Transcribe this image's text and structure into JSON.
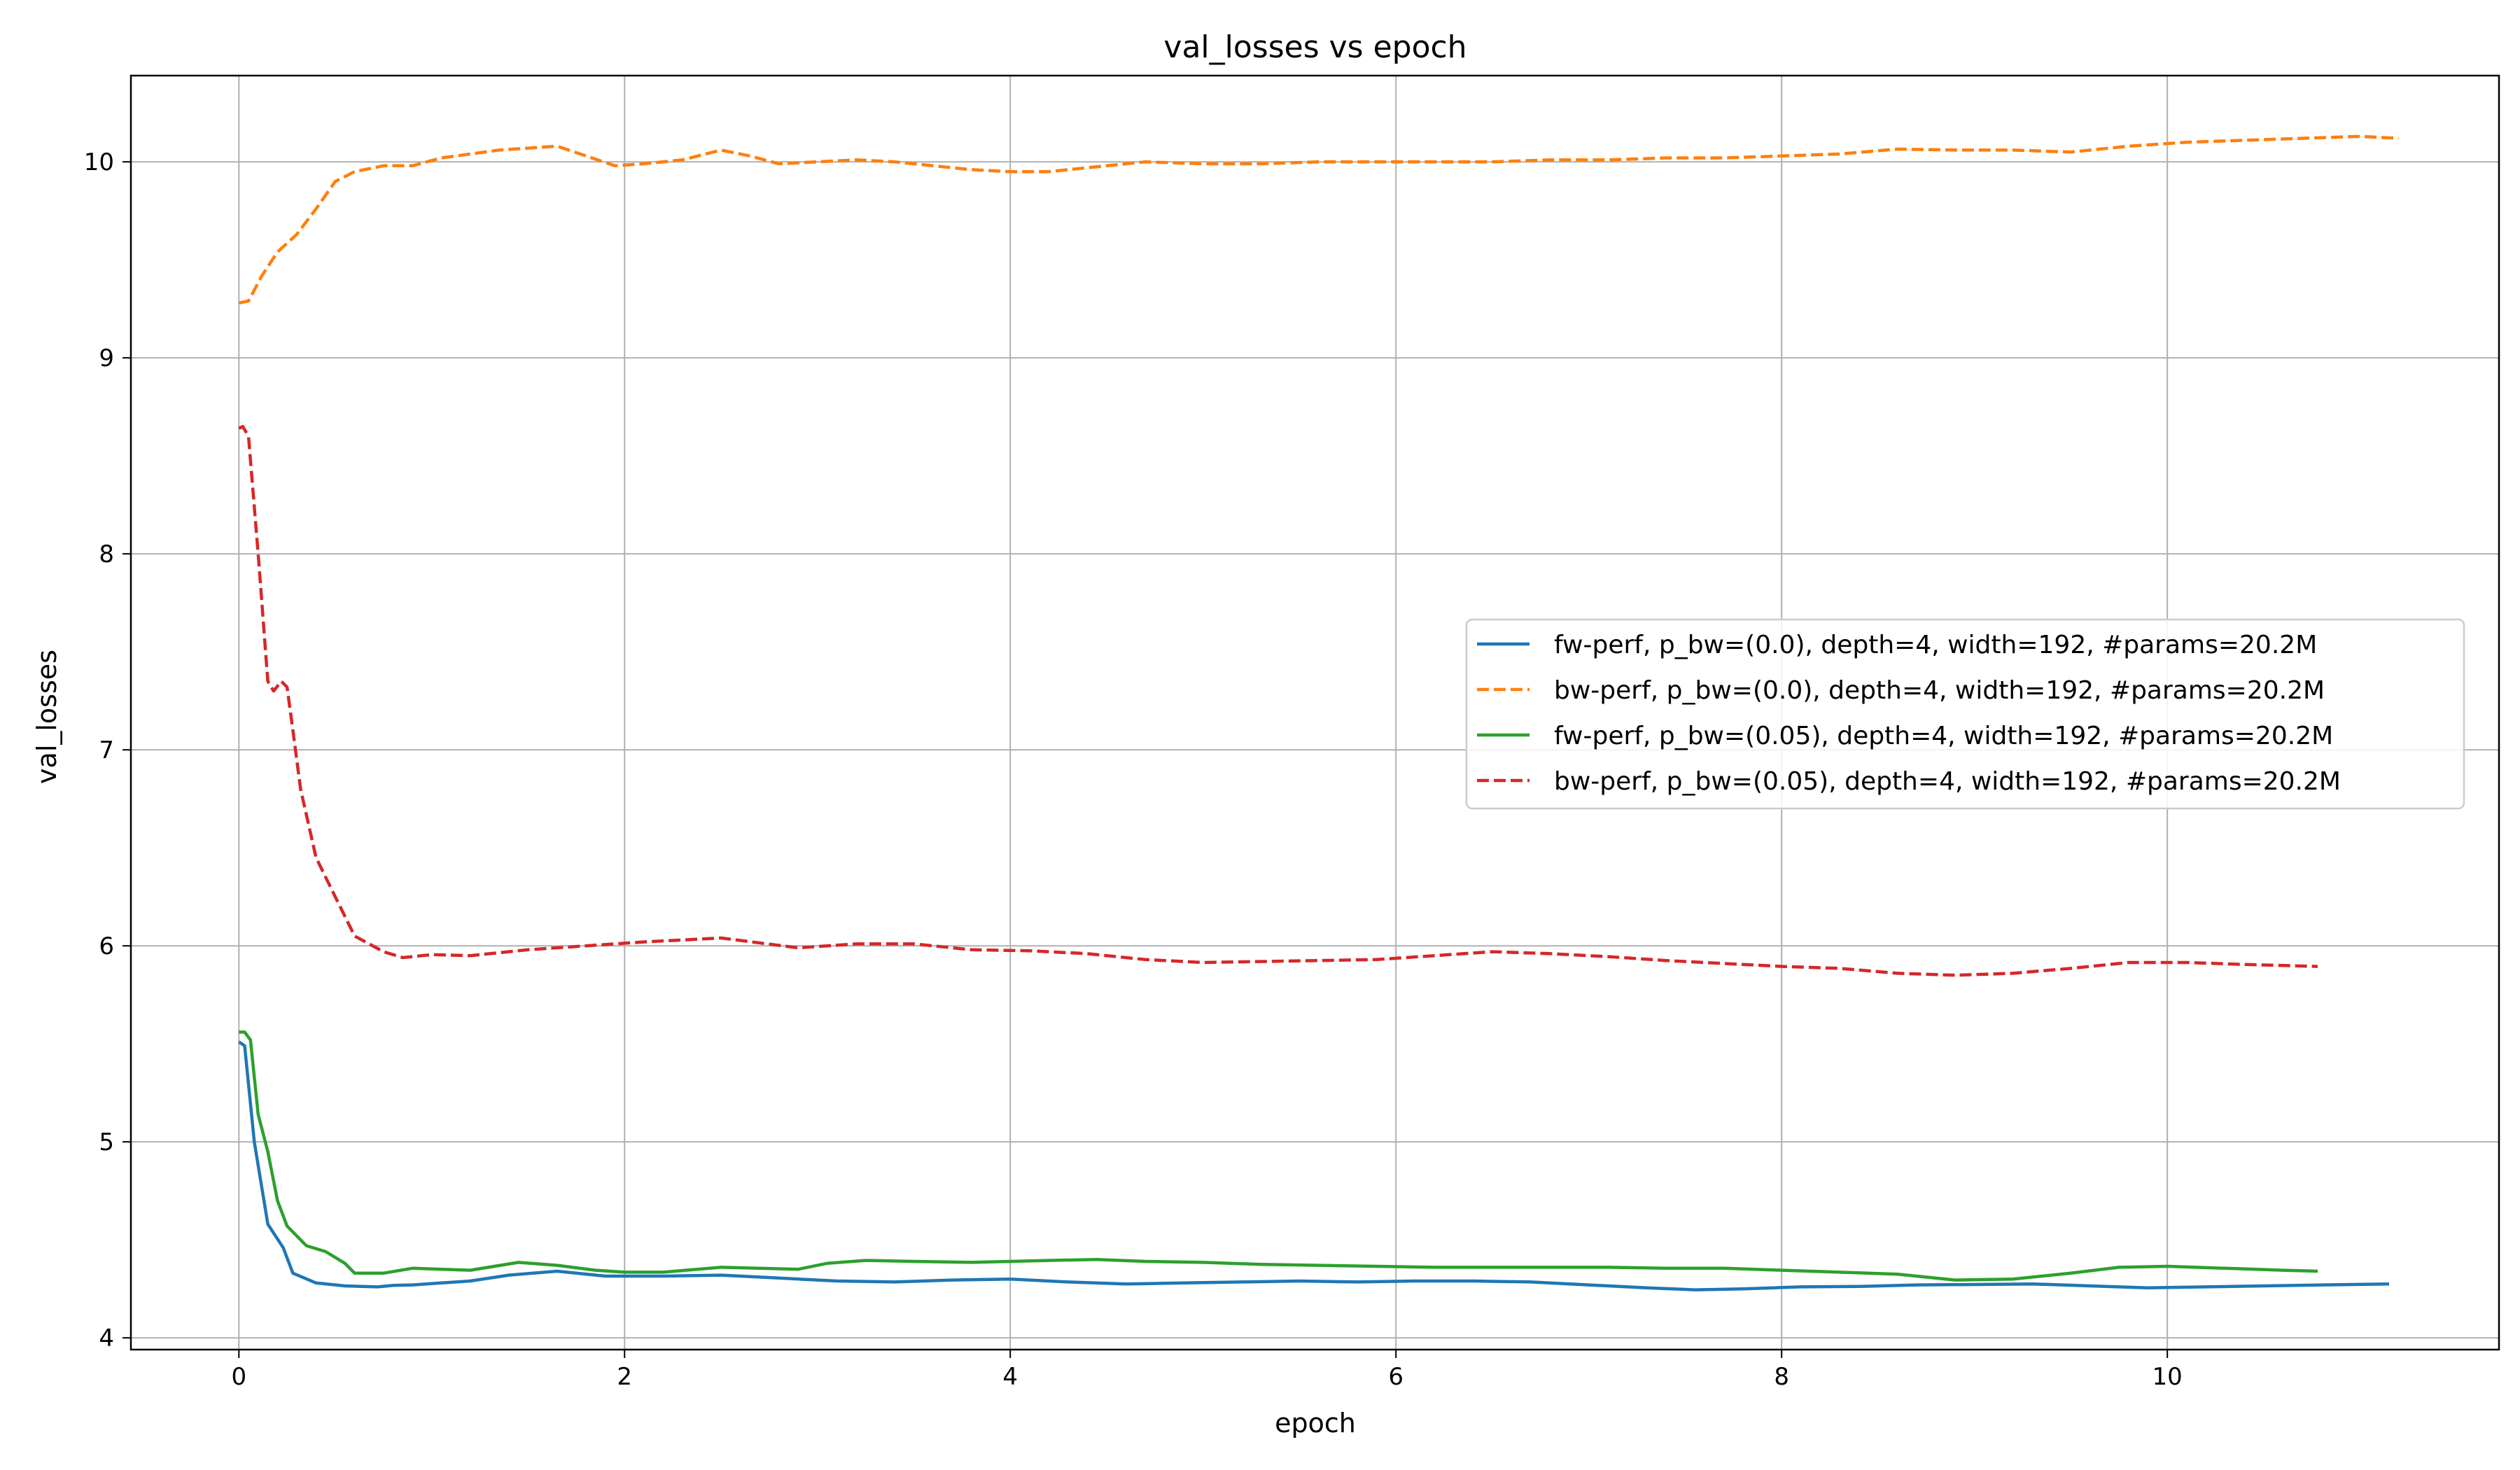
{
  "chart_data": {
    "type": "line",
    "title": "val_losses vs epoch",
    "xlabel": "epoch",
    "ylabel": "val_losses",
    "xlim": [
      -0.56,
      11.72
    ],
    "ylim": [
      3.94,
      10.44
    ],
    "xticks": [
      0,
      2,
      4,
      6,
      8,
      10
    ],
    "yticks": [
      4,
      5,
      6,
      7,
      8,
      9,
      10
    ],
    "grid": true,
    "legend_position": "center-right",
    "series": [
      {
        "name": "fw-perf, p_bw=(0.0), depth=4, width=192, #params=20.2M",
        "color": "#1f77b4",
        "dash": "solid",
        "x": [
          0,
          0.03,
          0.08,
          0.15,
          0.23,
          0.28,
          0.4,
          0.55,
          0.72,
          0.8,
          0.9,
          1.05,
          1.2,
          1.4,
          1.65,
          1.9,
          2.2,
          2.5,
          2.8,
          3.1,
          3.4,
          3.7,
          4.0,
          4.3,
          4.6,
          4.9,
          5.2,
          5.5,
          5.8,
          6.1,
          6.4,
          6.7,
          7.0,
          7.3,
          7.55,
          7.8,
          8.1,
          8.4,
          8.7,
          9.0,
          9.3,
          9.6,
          9.9,
          10.2,
          10.5,
          10.8,
          11.15
        ],
        "y": [
          5.51,
          5.49,
          5.0,
          4.58,
          4.46,
          4.33,
          4.28,
          4.265,
          4.26,
          4.268,
          4.27,
          4.28,
          4.29,
          4.32,
          4.34,
          4.315,
          4.315,
          4.32,
          4.305,
          4.29,
          4.285,
          4.295,
          4.3,
          4.285,
          4.275,
          4.28,
          4.285,
          4.29,
          4.285,
          4.29,
          4.29,
          4.285,
          4.27,
          4.255,
          4.245,
          4.25,
          4.26,
          4.262,
          4.27,
          4.272,
          4.275,
          4.265,
          4.255,
          4.26,
          4.265,
          4.27,
          4.275
        ]
      },
      {
        "name": "bw-perf, p_bw=(0.0), depth=4, width=192, #params=20.2M",
        "color": "#ff7f0e",
        "dash": "dashed",
        "x": [
          0,
          0.05,
          0.12,
          0.2,
          0.3,
          0.4,
          0.5,
          0.6,
          0.75,
          0.9,
          1.05,
          1.2,
          1.35,
          1.5,
          1.65,
          1.8,
          1.95,
          2.1,
          2.3,
          2.5,
          2.65,
          2.8,
          3.0,
          3.2,
          3.4,
          3.6,
          3.8,
          4.0,
          4.2,
          4.4,
          4.7,
          5.0,
          5.3,
          5.6,
          5.9,
          6.2,
          6.5,
          6.8,
          7.1,
          7.4,
          7.7,
          8.0,
          8.3,
          8.6,
          8.9,
          9.2,
          9.5,
          9.8,
          10.1,
          10.4,
          10.7,
          11.0,
          11.2
        ],
        "y": [
          9.28,
          9.29,
          9.42,
          9.54,
          9.63,
          9.76,
          9.9,
          9.95,
          9.98,
          9.98,
          10.02,
          10.04,
          10.06,
          10.07,
          10.08,
          10.03,
          9.98,
          9.99,
          10.01,
          10.06,
          10.03,
          9.99,
          10.0,
          10.01,
          10.0,
          9.98,
          9.96,
          9.95,
          9.95,
          9.97,
          10.0,
          9.99,
          9.99,
          10.0,
          10.0,
          10.0,
          10.0,
          10.01,
          10.01,
          10.02,
          10.02,
          10.03,
          10.04,
          10.065,
          10.06,
          10.06,
          10.05,
          10.08,
          10.1,
          10.11,
          10.12,
          10.13,
          10.12
        ]
      },
      {
        "name": "fw-perf, p_bw=(0.05), depth=4, width=192, #params=20.2M",
        "color": "#2ca02c",
        "dash": "solid",
        "x": [
          0,
          0.03,
          0.06,
          0.1,
          0.15,
          0.2,
          0.25,
          0.3,
          0.35,
          0.45,
          0.55,
          0.6,
          0.75,
          0.9,
          1.05,
          1.2,
          1.45,
          1.65,
          1.85,
          2.0,
          2.2,
          2.5,
          2.9,
          3.05,
          3.25,
          3.5,
          3.8,
          4.0,
          4.2,
          4.45,
          4.7,
          5.0,
          5.3,
          5.6,
          5.9,
          6.2,
          6.5,
          6.8,
          7.1,
          7.4,
          7.7,
          8.0,
          8.3,
          8.6,
          8.9,
          9.2,
          9.5,
          9.75,
          10.0,
          10.3,
          10.6,
          10.78
        ],
        "y": [
          5.56,
          5.56,
          5.52,
          5.14,
          4.95,
          4.7,
          4.57,
          4.52,
          4.47,
          4.44,
          4.38,
          4.33,
          4.33,
          4.355,
          4.35,
          4.345,
          4.385,
          4.37,
          4.345,
          4.335,
          4.335,
          4.36,
          4.35,
          4.38,
          4.395,
          4.39,
          4.385,
          4.39,
          4.395,
          4.4,
          4.39,
          4.385,
          4.375,
          4.37,
          4.365,
          4.36,
          4.36,
          4.36,
          4.36,
          4.355,
          4.355,
          4.345,
          4.335,
          4.325,
          4.295,
          4.3,
          4.33,
          4.36,
          4.365,
          4.355,
          4.345,
          4.34
        ]
      },
      {
        "name": "bw-perf, p_bw=(0.05), depth=4, width=192, #params=20.2M",
        "color": "#d62728",
        "dash": "dashed",
        "x": [
          0,
          0.02,
          0.05,
          0.1,
          0.15,
          0.18,
          0.22,
          0.25,
          0.28,
          0.32,
          0.4,
          0.5,
          0.6,
          0.75,
          0.85,
          1.0,
          1.2,
          1.5,
          1.8,
          2.1,
          2.5,
          2.9,
          3.2,
          3.5,
          3.8,
          4.1,
          4.4,
          4.7,
          5.0,
          5.3,
          5.6,
          5.9,
          6.2,
          6.5,
          6.8,
          7.1,
          7.4,
          7.7,
          8.0,
          8.3,
          8.6,
          8.9,
          9.2,
          9.5,
          9.8,
          10.1,
          10.4,
          10.78
        ],
        "y": [
          8.64,
          8.65,
          8.6,
          8.0,
          7.35,
          7.3,
          7.35,
          7.32,
          7.1,
          6.8,
          6.45,
          6.25,
          6.05,
          5.97,
          5.94,
          5.955,
          5.95,
          5.98,
          6.0,
          6.02,
          6.04,
          5.99,
          6.01,
          6.01,
          5.98,
          5.975,
          5.96,
          5.93,
          5.915,
          5.92,
          5.925,
          5.93,
          5.95,
          5.97,
          5.96,
          5.945,
          5.925,
          5.91,
          5.895,
          5.885,
          5.86,
          5.85,
          5.86,
          5.885,
          5.915,
          5.915,
          5.905,
          5.895
        ]
      }
    ]
  }
}
